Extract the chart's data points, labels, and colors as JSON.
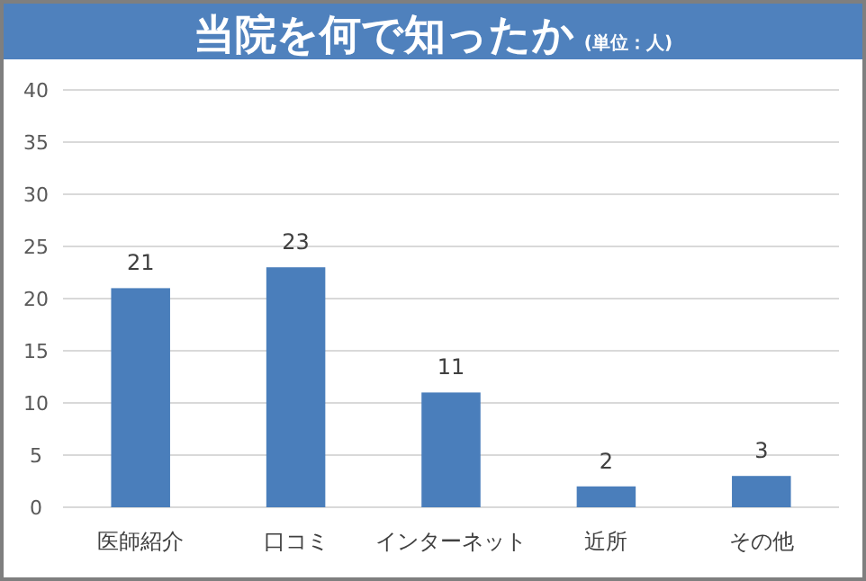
{
  "chart_data": {
    "type": "bar",
    "title": "当院を何で知ったか",
    "subtitle": "(単位：人)",
    "categories": [
      "医師紹介",
      "口コミ",
      "インターネット",
      "近所",
      "その他"
    ],
    "values": [
      21,
      23,
      11,
      2,
      3
    ],
    "color": "#4a7ebb",
    "ylim": [
      0,
      40
    ],
    "yticks": [
      0,
      5,
      10,
      15,
      20,
      25,
      30,
      35,
      40
    ],
    "grid": "y",
    "data_labels": true
  }
}
